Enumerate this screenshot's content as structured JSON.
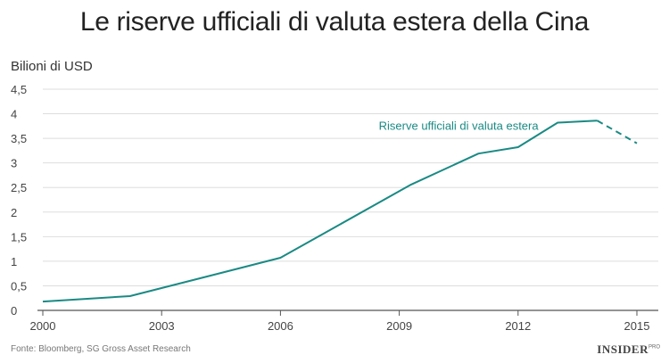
{
  "chart_data": {
    "type": "line",
    "title": "Le riserve ufficiali di valuta estera della Cina",
    "ylabel": "Bilioni di USD",
    "xlabel": "",
    "xlim": [
      2000,
      2015
    ],
    "ylim": [
      0,
      4.5
    ],
    "x_ticks": [
      "2000",
      "2003",
      "2006",
      "2009",
      "2012",
      "2015"
    ],
    "y_ticks": [
      "0",
      "0,5",
      "1",
      "1,5",
      "2",
      "2,5",
      "3",
      "3,5",
      "4",
      "4,5"
    ],
    "grid": true,
    "series": [
      {
        "name": "Riserve ufficiali di valuta estera",
        "color": "#1a8a84",
        "points": [
          {
            "x": 2000,
            "y": 0.18
          },
          {
            "x": 2002.2,
            "y": 0.29
          },
          {
            "x": 2006,
            "y": 1.07
          },
          {
            "x": 2009.3,
            "y": 2.56
          },
          {
            "x": 2011,
            "y": 3.19
          },
          {
            "x": 2012,
            "y": 3.32
          },
          {
            "x": 2013,
            "y": 3.82
          },
          {
            "x": 2014,
            "y": 3.86
          }
        ],
        "projection": [
          {
            "x": 2014,
            "y": 3.86
          },
          {
            "x": 2015,
            "y": 3.4
          }
        ]
      }
    ]
  },
  "footer": {
    "source": "Fonte: Bloomberg, SG Gross Asset Research",
    "brand": "INSIDER",
    "brand_sup": "PRO"
  }
}
